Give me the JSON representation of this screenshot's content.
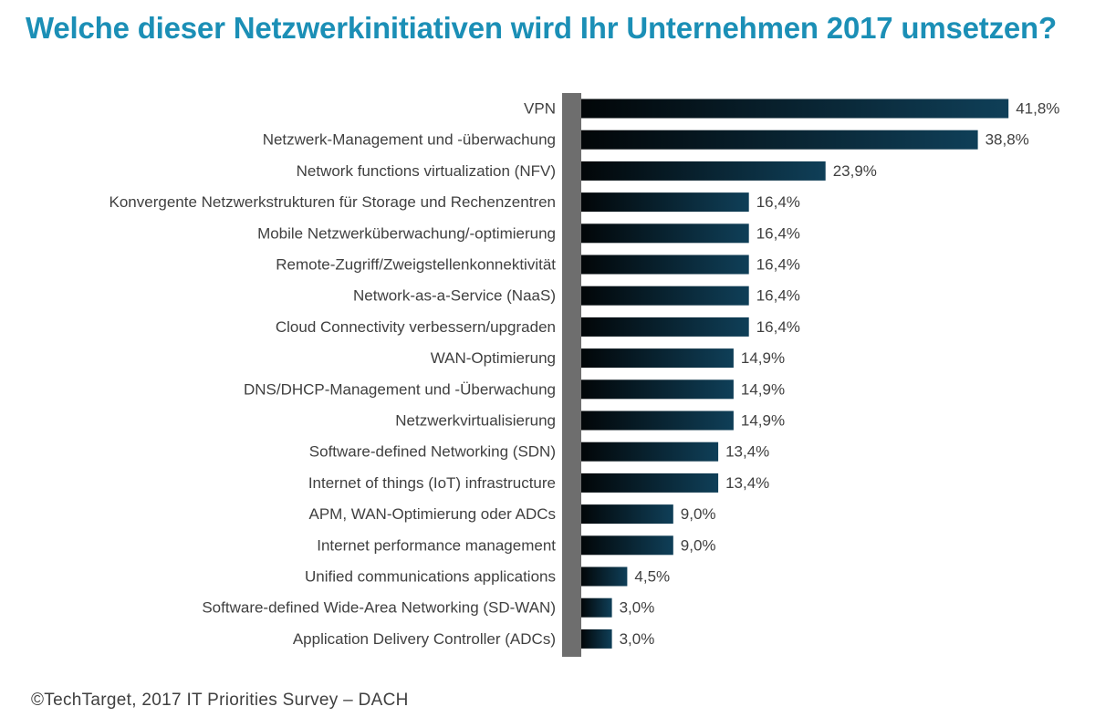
{
  "title": "Welche dieser Netzwerkinitiativen wird Ihr Unternehmen 2017 umsetzen?",
  "source": "©TechTarget, 2017 IT Priorities Survey – DACH",
  "colors": {
    "title": "#1b8fb6",
    "bar_dark": "#020608",
    "bar_light": "#0f3f58",
    "axis": "#6e6e6e",
    "text": "#404040"
  },
  "chart_data": {
    "type": "bar",
    "orientation": "horizontal",
    "categories": [
      "VPN",
      "Netzwerk-Management und -überwachung",
      "Network functions virtualization (NFV)",
      "Konvergente Netzwerkstrukturen für Storage und Rechenzentren",
      "Mobile Netzwerküberwachung/-optimierung",
      "Remote-Zugriff/Zweigstellenkonnektivität",
      "Network-as-a-Service (NaaS)",
      "Cloud Connectivity verbessern/upgraden",
      "WAN-Optimierung",
      "DNS/DHCP-Management und -Überwachung",
      "Netzwerkvirtualisierung",
      "Software-defined Networking (SDN)",
      "Internet of things (IoT) infrastructure",
      "APM, WAN-Optimierung oder ADCs",
      "Internet performance management",
      "Unified communications applications",
      "Software-defined Wide-Area Networking (SD-WAN)",
      "Application Delivery Controller (ADCs)"
    ],
    "values": [
      41.8,
      38.8,
      23.9,
      16.4,
      16.4,
      16.4,
      16.4,
      16.4,
      14.9,
      14.9,
      14.9,
      13.4,
      13.4,
      9.0,
      9.0,
      4.5,
      3.0,
      3.0
    ],
    "value_labels": [
      "41,8%",
      "38,8%",
      "23,9%",
      "16,4%",
      "16,4%",
      "16,4%",
      "16,4%",
      "16,4%",
      "14,9%",
      "14,9%",
      "14,9%",
      "13,4%",
      "13,4%",
      "9,0%",
      "9,0%",
      "4,5%",
      "3,0%",
      "3,0%"
    ],
    "unit": "%",
    "xlim": [
      0,
      45
    ],
    "grid": false,
    "legend": "none"
  }
}
